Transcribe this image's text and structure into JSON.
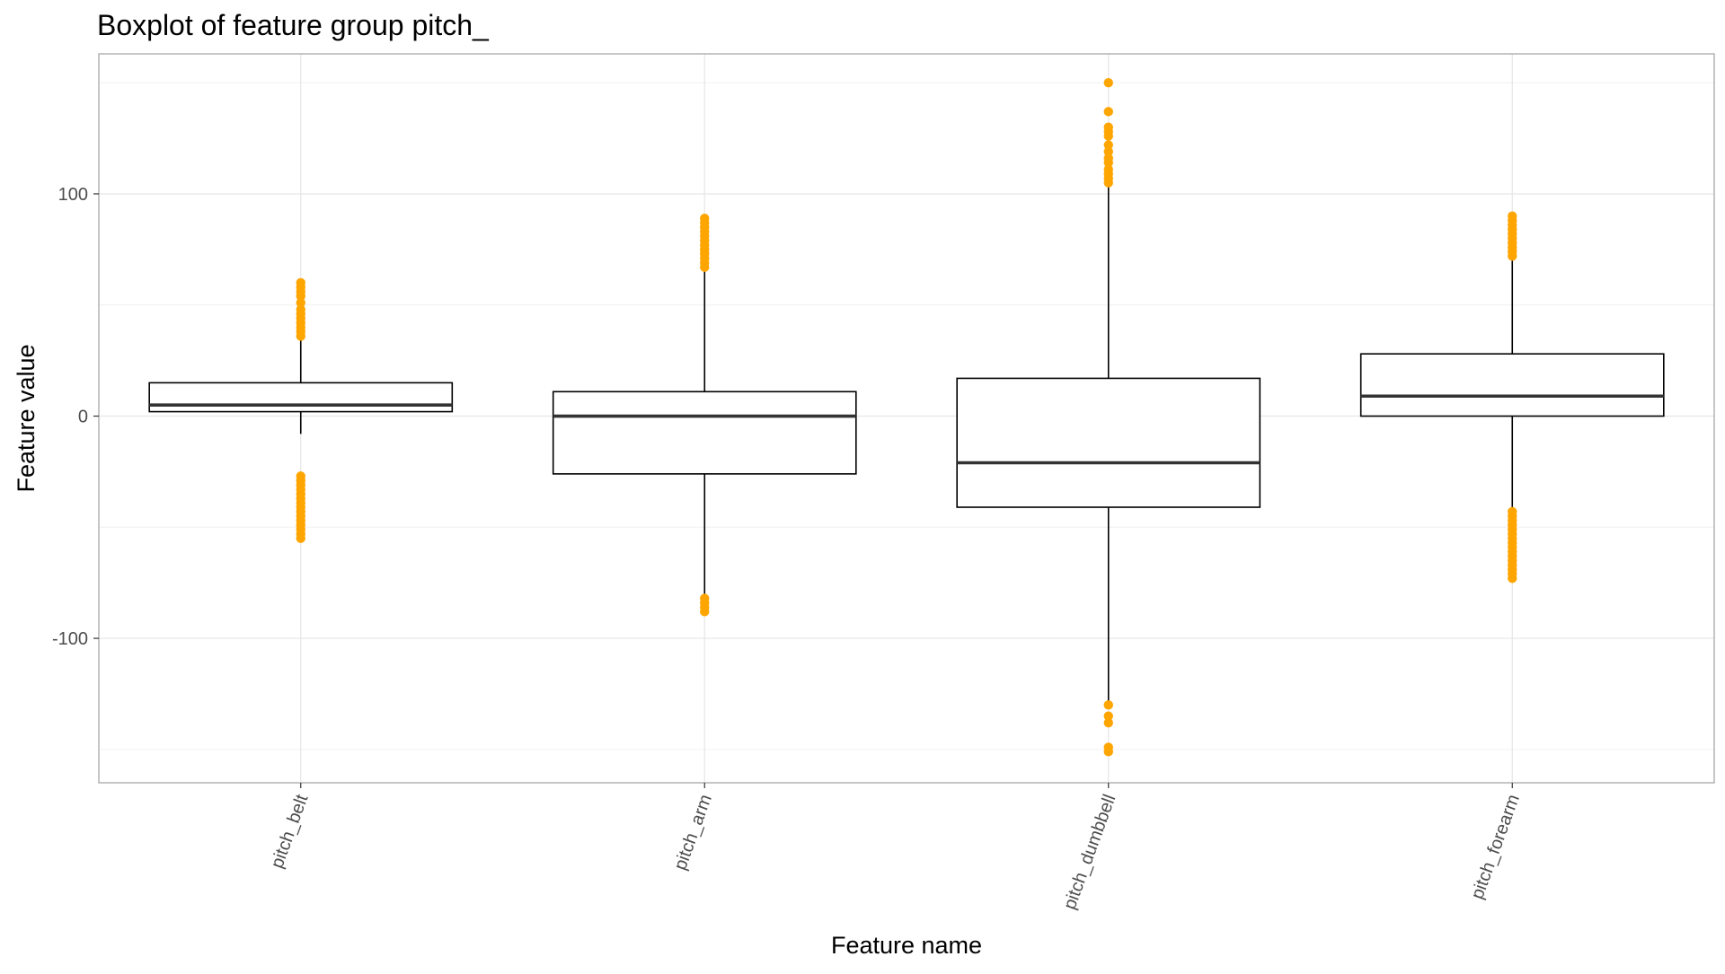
{
  "chart_data": {
    "type": "boxplot",
    "title": "Boxplot of feature group pitch_",
    "xlabel": "Feature name",
    "ylabel": "Feature value",
    "ylim": [
      -165,
      163
    ],
    "yticks": [
      -100,
      0,
      100
    ],
    "ytick_labels": [
      "-100",
      "0",
      "100"
    ],
    "grid": true,
    "colors": {
      "outlier": "#FFA500",
      "box": "#000000",
      "grid": "#e5e5e5",
      "panel_border": "#a0a0a0"
    },
    "categories": [
      "pitch_belt",
      "pitch_arm",
      "pitch_dumbbell",
      "pitch_forearm"
    ],
    "boxes": [
      {
        "name": "pitch_belt",
        "whisker_low": -8,
        "q1": 2,
        "median": 5,
        "q3": 15,
        "whisker_high": 34,
        "outliers": [
          60,
          58,
          56,
          54,
          51,
          48,
          46,
          44,
          42,
          40,
          38,
          36,
          -27,
          -29,
          -31,
          -33,
          -35,
          -37,
          -39,
          -41,
          -43,
          -45,
          -47,
          -49,
          -51,
          -53,
          -55
        ]
      },
      {
        "name": "pitch_arm",
        "whisker_low": -81,
        "q1": -26,
        "median": 0,
        "q3": 11,
        "whisker_high": 67,
        "outliers": [
          89,
          87,
          85,
          83,
          81,
          79,
          77,
          75,
          73,
          71,
          69,
          67,
          -82,
          -84,
          -86,
          -88
        ]
      },
      {
        "name": "pitch_dumbbell",
        "whisker_low": -129,
        "q1": -41,
        "median": -21,
        "q3": 17,
        "whisker_high": 105,
        "outliers": [
          150,
          137,
          130,
          128,
          126,
          122,
          119,
          116,
          114,
          111,
          109,
          107,
          105,
          -130,
          -135,
          -138,
          -149,
          -151
        ]
      },
      {
        "name": "pitch_forearm",
        "whisker_low": -42,
        "q1": 0,
        "median": 9,
        "q3": 28,
        "whisker_high": 71,
        "outliers": [
          90,
          88,
          86,
          84,
          82,
          80,
          78,
          76,
          74,
          72,
          -43,
          -45,
          -47,
          -49,
          -51,
          -53,
          -55,
          -57,
          -59,
          -61,
          -63,
          -65,
          -67,
          -69,
          -71,
          -73
        ]
      }
    ]
  }
}
